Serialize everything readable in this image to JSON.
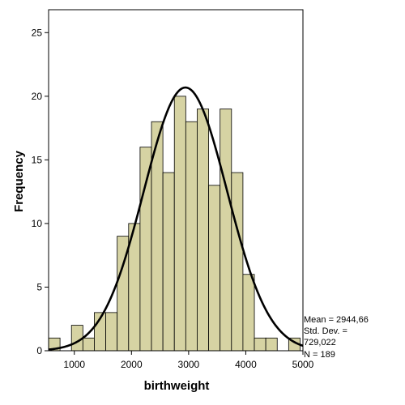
{
  "chart_data": {
    "type": "bar",
    "subtype": "histogram",
    "title": "",
    "xlabel": "birthweight",
    "ylabel": "Frequency",
    "xlim": [
      550,
      5000
    ],
    "ylim": [
      0,
      26.8
    ],
    "x_ticks": [
      1000,
      2000,
      3000,
      4000,
      5000
    ],
    "y_ticks": [
      0,
      5,
      10,
      15,
      20,
      25
    ],
    "bin_width": 200,
    "bins": [
      {
        "start": 550,
        "end": 750,
        "count": 1
      },
      {
        "start": 750,
        "end": 950,
        "count": 0
      },
      {
        "start": 950,
        "end": 1150,
        "count": 2
      },
      {
        "start": 1150,
        "end": 1350,
        "count": 1
      },
      {
        "start": 1350,
        "end": 1550,
        "count": 3
      },
      {
        "start": 1550,
        "end": 1750,
        "count": 3
      },
      {
        "start": 1750,
        "end": 1950,
        "count": 9
      },
      {
        "start": 1950,
        "end": 2150,
        "count": 10
      },
      {
        "start": 2150,
        "end": 2350,
        "count": 16
      },
      {
        "start": 2350,
        "end": 2550,
        "count": 18
      },
      {
        "start": 2550,
        "end": 2750,
        "count": 14
      },
      {
        "start": 2750,
        "end": 2950,
        "count": 20
      },
      {
        "start": 2950,
        "end": 3150,
        "count": 18
      },
      {
        "start": 3150,
        "end": 3350,
        "count": 19
      },
      {
        "start": 3350,
        "end": 3550,
        "count": 13
      },
      {
        "start": 3550,
        "end": 3750,
        "count": 19
      },
      {
        "start": 3750,
        "end": 3950,
        "count": 14
      },
      {
        "start": 3950,
        "end": 4150,
        "count": 6
      },
      {
        "start": 4150,
        "end": 4350,
        "count": 1
      },
      {
        "start": 4350,
        "end": 4550,
        "count": 1
      },
      {
        "start": 4550,
        "end": 4750,
        "count": 0
      },
      {
        "start": 4750,
        "end": 4950,
        "count": 1
      }
    ],
    "normal_curve": {
      "mean": 2944.66,
      "sd": 729.022,
      "n": 189
    },
    "stats_lines": [
      "Mean = 2944,66",
      "Std. Dev. =",
      "729,022",
      "N = 189"
    ],
    "grid": false,
    "colors": {
      "bar_fill": "#d6d3a3",
      "bar_stroke": "#000000",
      "curve": "#000000"
    }
  }
}
